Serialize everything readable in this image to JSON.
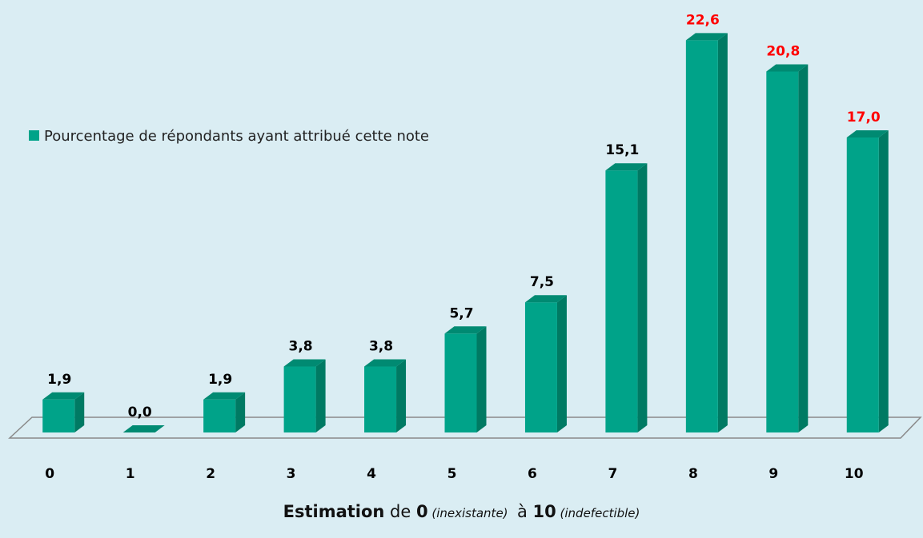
{
  "chart_data": {
    "type": "bar3d",
    "categories": [
      "0",
      "1",
      "2",
      "3",
      "4",
      "5",
      "6",
      "7",
      "8",
      "9",
      "10"
    ],
    "series": [
      {
        "name": "Pourcentage de répondants ayant attribué cette note",
        "color": "#00a389",
        "values": [
          1.9,
          0.0,
          1.9,
          3.8,
          3.8,
          5.7,
          7.5,
          15.1,
          22.6,
          20.8,
          17.0
        ],
        "value_labels": [
          "1,9",
          "0,0",
          "1,9",
          "3,8",
          "3,8",
          "5,7",
          "7,5",
          "15,1",
          "22,6",
          "20,8",
          "17,0"
        ],
        "value_label_colors": [
          "#000000",
          "#000000",
          "#000000",
          "#000000",
          "#000000",
          "#000000",
          "#000000",
          "#000000",
          "#ff0000",
          "#ff0000",
          "#ff0000"
        ]
      }
    ],
    "xlabel": [
      {
        "text": "Estimation",
        "style": "bold"
      },
      {
        "text": " de ",
        "style": "normal"
      },
      {
        "text": "0",
        "style": "bold"
      },
      {
        "text": " (inexistante) ",
        "style": "italic"
      },
      {
        "text": " à ",
        "style": "normal"
      },
      {
        "text": "10",
        "style": "bold"
      },
      {
        "text": " (indefectible)",
        "style": "italic"
      }
    ],
    "ylim": [
      0,
      24
    ],
    "legend": "left",
    "grid": false
  }
}
